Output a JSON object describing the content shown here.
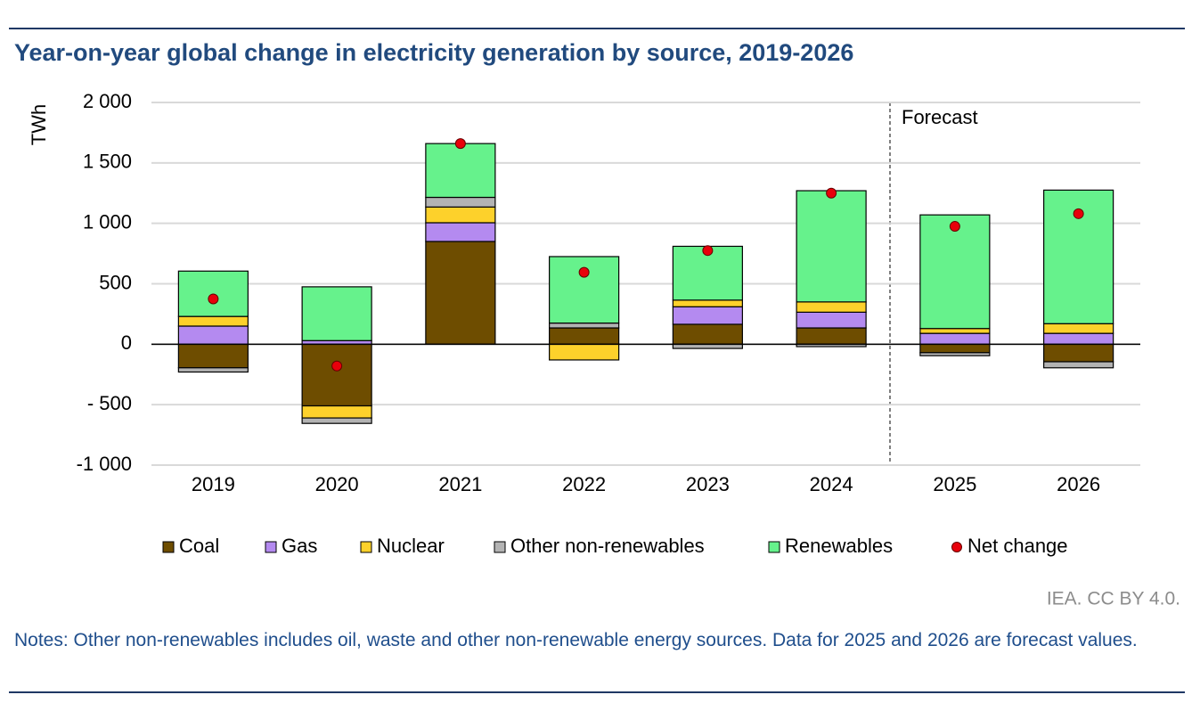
{
  "chart_data": {
    "type": "bar",
    "stacked": true,
    "title": "Year-on-year global change in electricity generation by source, 2019-2026",
    "y_label": "TWh",
    "annotation": "Forecast",
    "source": "IEA. CC BY 4.0.",
    "notes": "Notes: Other non-renewables includes oil, waste and other non-renewable energy sources. Data for 2025 and 2026 are forecast values.",
    "categories": [
      "2019",
      "2020",
      "2021",
      "2022",
      "2023",
      "2024",
      "2025",
      "2026"
    ],
    "series": [
      {
        "name": "Coal",
        "color": "#6e4d00",
        "values": [
          -195,
          -510,
          850,
          135,
          165,
          135,
          -70,
          -145
        ]
      },
      {
        "name": "Gas",
        "color": "#b48af0",
        "values": [
          150,
          30,
          155,
          0,
          145,
          130,
          90,
          90
        ]
      },
      {
        "name": "Nuclear",
        "color": "#fdd12b",
        "values": [
          80,
          -100,
          130,
          -130,
          55,
          85,
          40,
          80
        ]
      },
      {
        "name": "Other non-renewables",
        "color": "#b3b3b3",
        "values": [
          -35,
          -45,
          80,
          40,
          -35,
          -20,
          -25,
          -50
        ]
      },
      {
        "name": "Renewables",
        "color": "#66f28c",
        "values": [
          375,
          445,
          445,
          550,
          445,
          920,
          940,
          1105
        ]
      },
      {
        "name": "Net change",
        "color": "#e8000b",
        "type": "scatter",
        "values": [
          375,
          -180,
          1660,
          595,
          775,
          1250,
          975,
          1080
        ]
      }
    ],
    "ylim": [
      -1000,
      2000
    ],
    "yticks": [
      {
        "value": -1000,
        "label": "-1 000"
      },
      {
        "value": -500,
        "label": "- 500"
      },
      0,
      {
        "value": 500,
        "label": "500"
      },
      {
        "value": 1000,
        "label": "1 000"
      },
      {
        "value": 1500,
        "label": "1 500"
      },
      {
        "value": 2000,
        "label": "2 000"
      }
    ],
    "grid": true
  }
}
